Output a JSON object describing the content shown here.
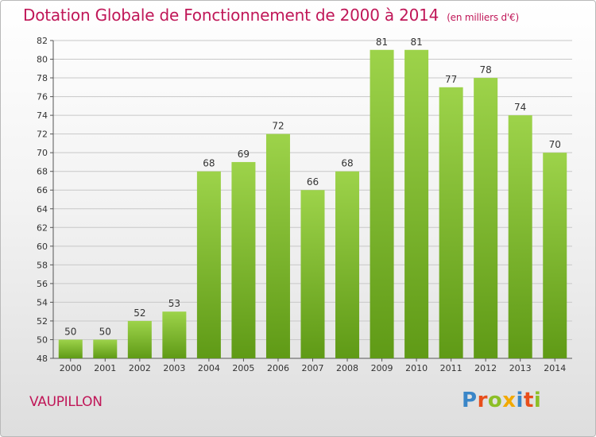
{
  "title": "Dotation Globale de Fonctionnement de 2000 à 2014",
  "subtitle": "(en milliers d'€)",
  "commune": "VAUPILLON",
  "logo": {
    "text": "Proxiti",
    "letters": [
      {
        "ch": "P",
        "color": "#3a86c8"
      },
      {
        "ch": "r",
        "color": "#e84e1b"
      },
      {
        "ch": "o",
        "color": "#8cbf26"
      },
      {
        "ch": "x",
        "color": "#f2a900"
      },
      {
        "ch": "i",
        "color": "#3a86c8"
      },
      {
        "ch": "t",
        "color": "#e84e1b"
      },
      {
        "ch": "i",
        "color": "#8cbf26"
      }
    ]
  },
  "colors": {
    "title": "#c01758",
    "bar_top": "#9dd34a",
    "bar_bottom": "#5f9a16",
    "grid": "#c8c8c8",
    "axis": "#555555",
    "label": "#333333"
  },
  "chart_data": {
    "type": "bar",
    "categories": [
      "2000",
      "2001",
      "2002",
      "2003",
      "2004",
      "2005",
      "2006",
      "2007",
      "2008",
      "2009",
      "2010",
      "2011",
      "2012",
      "2013",
      "2014"
    ],
    "values": [
      50,
      50,
      52,
      53,
      68,
      69,
      72,
      66,
      68,
      81,
      81,
      77,
      78,
      74,
      70
    ],
    "ylim": [
      48,
      82
    ],
    "yticks": [
      48,
      50,
      52,
      54,
      56,
      58,
      60,
      62,
      64,
      66,
      68,
      70,
      72,
      74,
      76,
      78,
      80,
      82
    ],
    "grid": true,
    "data_labels": true
  }
}
